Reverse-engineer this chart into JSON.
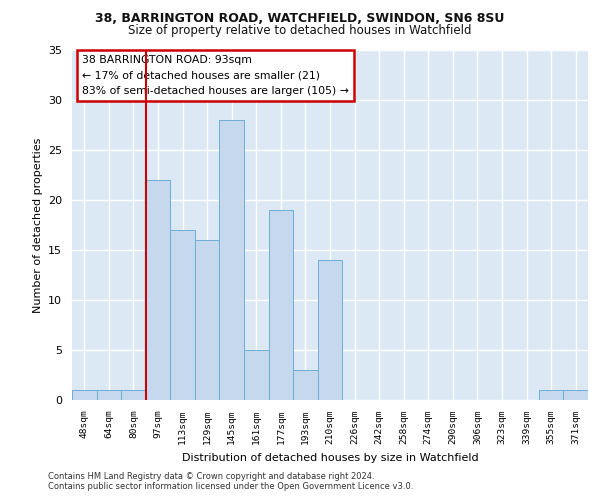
{
  "title1": "38, BARRINGTON ROAD, WATCHFIELD, SWINDON, SN6 8SU",
  "title2": "Size of property relative to detached houses in Watchfield",
  "xlabel": "Distribution of detached houses by size in Watchfield",
  "ylabel": "Number of detached properties",
  "categories": [
    "48sqm",
    "64sqm",
    "80sqm",
    "97sqm",
    "113sqm",
    "129sqm",
    "145sqm",
    "161sqm",
    "177sqm",
    "193sqm",
    "210sqm",
    "226sqm",
    "242sqm",
    "258sqm",
    "274sqm",
    "290sqm",
    "306sqm",
    "323sqm",
    "339sqm",
    "355sqm",
    "371sqm"
  ],
  "values": [
    1,
    1,
    1,
    22,
    17,
    16,
    28,
    5,
    19,
    3,
    14,
    0,
    0,
    0,
    0,
    0,
    0,
    0,
    0,
    1,
    1
  ],
  "bar_color": "#c5d8ee",
  "bar_edge_color": "#6aaed6",
  "marker_label": "38 BARRINGTON ROAD: 93sqm",
  "marker_smaller": "← 17% of detached houses are smaller (21)",
  "marker_larger": "83% of semi-detached houses are larger (105) →",
  "vline_color": "#cc0000",
  "annotation_box_edge_color": "#cc0000",
  "background_color": "#dce9f5",
  "ylim": [
    0,
    35
  ],
  "yticks": [
    0,
    5,
    10,
    15,
    20,
    25,
    30,
    35
  ],
  "footnote1": "Contains HM Land Registry data © Crown copyright and database right 2024.",
  "footnote2": "Contains public sector information licensed under the Open Government Licence v3.0."
}
